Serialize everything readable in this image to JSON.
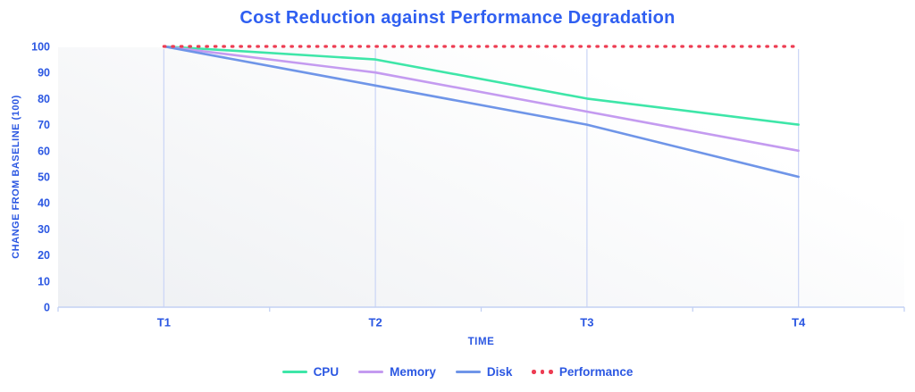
{
  "title": "Cost Reduction against Performance Degradation",
  "colors": {
    "title": "#2f5ff1",
    "axis_text": "#2b57e2",
    "grid": "#cdd7f6",
    "axis_line": "#c3d1f3",
    "plot_bg_start": "#ffffff",
    "plot_bg_end": "#eef0f3",
    "cpu": "#3ee6a8",
    "memory": "#c49bf0",
    "disk": "#6f95e8",
    "performance": "#ed3c52"
  },
  "chart_data": {
    "type": "line",
    "title": "Cost Reduction against Performance Degradation",
    "categories": [
      "T1",
      "T2",
      "T3",
      "T4"
    ],
    "series": [
      {
        "name": "CPU",
        "color": "#3ee6a8",
        "style": "solid",
        "values": [
          100,
          95,
          80,
          70
        ]
      },
      {
        "name": "Memory",
        "color": "#c49bf0",
        "style": "solid",
        "values": [
          100,
          90,
          75,
          60
        ]
      },
      {
        "name": "Disk",
        "color": "#6f95e8",
        "style": "solid",
        "values": [
          100,
          85,
          70,
          50
        ]
      },
      {
        "name": "Performance",
        "color": "#ed3c52",
        "style": "dotted",
        "values": [
          100,
          100,
          100,
          100
        ]
      }
    ],
    "xlabel": "TIME",
    "ylabel": "CHANGE FROM BASELINE (100)",
    "ylim": [
      0,
      100
    ],
    "ytick_step": 10,
    "yticks": [
      0,
      10,
      20,
      30,
      40,
      50,
      60,
      70,
      80,
      90,
      100
    ],
    "grid": "vertical-only",
    "legend_position": "bottom"
  }
}
